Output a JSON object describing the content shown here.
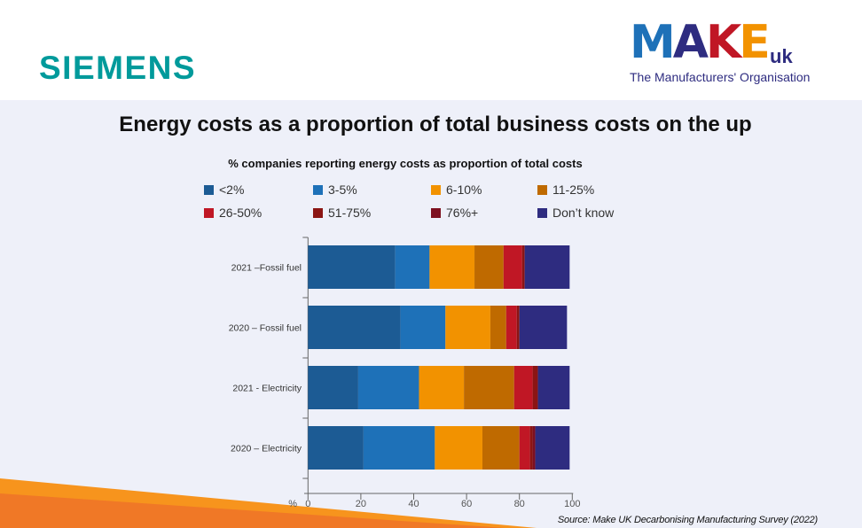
{
  "header": {
    "left_logo": "SIEMENS",
    "right_logo": {
      "word": "MAKE",
      "suffix": "uk",
      "tagline": "The Manufacturers' Organisation"
    }
  },
  "source": "Source: Make UK Decarbonising Manufacturing Survey (2022)",
  "chart_data": {
    "type": "bar",
    "orientation": "horizontal",
    "stacked": true,
    "title": "Energy costs as a proportion of total business costs on the up",
    "subtitle": "% companies reporting energy costs as proportion of total costs",
    "xlabel": "%",
    "xlim": [
      0,
      100
    ],
    "xticks": [
      0,
      20,
      40,
      60,
      80,
      100
    ],
    "legend_position": "top",
    "categories": [
      "2021 –Fossil fuel",
      "2020 – Fossil fuel",
      "2021 - Electricity",
      "2020 – Electricity"
    ],
    "series": [
      {
        "name": "<2%",
        "color": "#1c5b94",
        "values": [
          33,
          35,
          19,
          21
        ]
      },
      {
        "name": "3-5%",
        "color": "#1e71b8",
        "values": [
          13,
          17,
          23,
          27
        ]
      },
      {
        "name": "6-10%",
        "color": "#f29200",
        "values": [
          17,
          17,
          17,
          18
        ]
      },
      {
        "name": "11-25%",
        "color": "#bf6a00",
        "values": [
          11,
          6,
          19,
          14
        ]
      },
      {
        "name": "26-50%",
        "color": "#c01725",
        "values": [
          7,
          4,
          7,
          4
        ]
      },
      {
        "name": "51-75%",
        "color": "#8b1514",
        "values": [
          1,
          1,
          2,
          1
        ]
      },
      {
        "name": "76%+",
        "color": "#7d1020",
        "values": [
          0,
          0,
          0,
          1
        ]
      },
      {
        "name": "Don’t know",
        "color": "#2e2c80",
        "values": [
          17,
          18,
          12,
          13
        ]
      }
    ]
  }
}
